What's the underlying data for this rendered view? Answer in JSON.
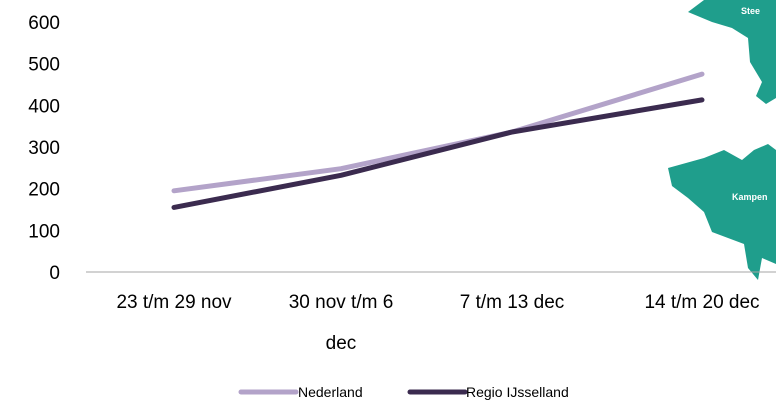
{
  "chart_data": {
    "type": "line",
    "categories": [
      "23 t/m 29 nov",
      "30 nov t/m 6 dec",
      "7 t/m 13 dec",
      "14 t/m 20 dec"
    ],
    "series": [
      {
        "name": "Nederland",
        "values": [
          195,
          248,
          336,
          475
        ],
        "color": "#b3a3c9"
      },
      {
        "name": "Regio IJsselland",
        "values": [
          155,
          232,
          336,
          413
        ],
        "color": "#3b2b4f"
      }
    ],
    "ylim": [
      0,
      600
    ],
    "yticks": [
      0,
      100,
      200,
      300,
      400,
      500,
      600
    ],
    "grid": false,
    "legend": "bottom-center"
  },
  "map": {
    "label_top": "Stee",
    "label_kampen": "Kampen",
    "color": "#1f9e8c"
  }
}
